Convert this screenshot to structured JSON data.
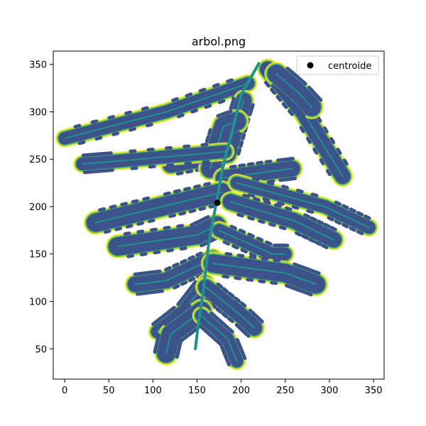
{
  "chart_data": {
    "type": "scatter",
    "title": "arbol.png",
    "xlabel": "",
    "ylabel": "",
    "xlim": [
      -13,
      362
    ],
    "ylim": [
      18,
      364
    ],
    "xticks": [
      0,
      50,
      100,
      150,
      200,
      250,
      300,
      350
    ],
    "yticks": [
      50,
      100,
      150,
      200,
      250,
      300,
      350
    ],
    "grid": false,
    "legend": {
      "placement": "top-right",
      "entries": [
        "centroide"
      ]
    },
    "colormap": [
      "#440154",
      "#3b528b",
      "#21918c",
      "#5ec962",
      "#fde725"
    ],
    "series": [
      {
        "name": "centroide",
        "color": "#000000",
        "points": [
          [
            173,
            204
          ]
        ]
      }
    ],
    "image_points_description_only": false,
    "leaf_shape": {
      "rachis": [
        [
          220,
          351
        ],
        [
          200,
          318
        ],
        [
          190,
          280
        ],
        [
          180,
          245
        ],
        [
          172,
          205
        ],
        [
          163,
          160
        ],
        [
          157,
          110
        ],
        [
          152,
          80
        ],
        [
          148,
          50
        ]
      ],
      "leaflets": [
        [
          [
            208,
            330
          ],
          [
            115,
            300
          ],
          [
            0,
            272
          ]
        ],
        [
          [
            203,
            312
          ],
          [
            200,
            303
          ],
          [
            185,
            255
          ],
          [
            120,
            244
          ]
        ],
        [
          [
            195,
            290
          ],
          [
            180,
            285
          ],
          [
            165,
            240
          ]
        ],
        [
          [
            182,
            258
          ],
          [
            60,
            248
          ],
          [
            20,
            245
          ]
        ],
        [
          [
            180,
            230
          ],
          [
            240,
            238
          ],
          [
            258,
            240
          ]
        ],
        [
          [
            178,
            215
          ],
          [
            110,
            200
          ],
          [
            35,
            183
          ]
        ],
        [
          [
            195,
            225
          ],
          [
            295,
            200
          ],
          [
            345,
            178
          ]
        ],
        [
          [
            188,
            205
          ],
          [
            260,
            185
          ],
          [
            305,
            165
          ]
        ],
        [
          [
            172,
            180
          ],
          [
            150,
            170
          ],
          [
            60,
            158
          ]
        ],
        [
          [
            175,
            175
          ],
          [
            235,
            150
          ],
          [
            250,
            150
          ]
        ],
        [
          [
            168,
            145
          ],
          [
            115,
            122
          ],
          [
            80,
            118
          ]
        ],
        [
          [
            168,
            140
          ],
          [
            250,
            130
          ],
          [
            285,
            118
          ]
        ],
        [
          [
            160,
            120
          ],
          [
            135,
            90
          ],
          [
            105,
            68
          ]
        ],
        [
          [
            160,
            115
          ],
          [
            200,
            85
          ],
          [
            215,
            72
          ]
        ],
        [
          [
            155,
            90
          ],
          [
            120,
            65
          ],
          [
            115,
            45
          ]
        ],
        [
          [
            155,
            85
          ],
          [
            185,
            60
          ],
          [
            195,
            37
          ]
        ],
        [
          [
            230,
            345
          ],
          [
            270,
            300
          ],
          [
            315,
            232
          ]
        ],
        [
          [
            240,
            340
          ],
          [
            265,
            320
          ],
          [
            280,
            305
          ]
        ]
      ]
    }
  }
}
